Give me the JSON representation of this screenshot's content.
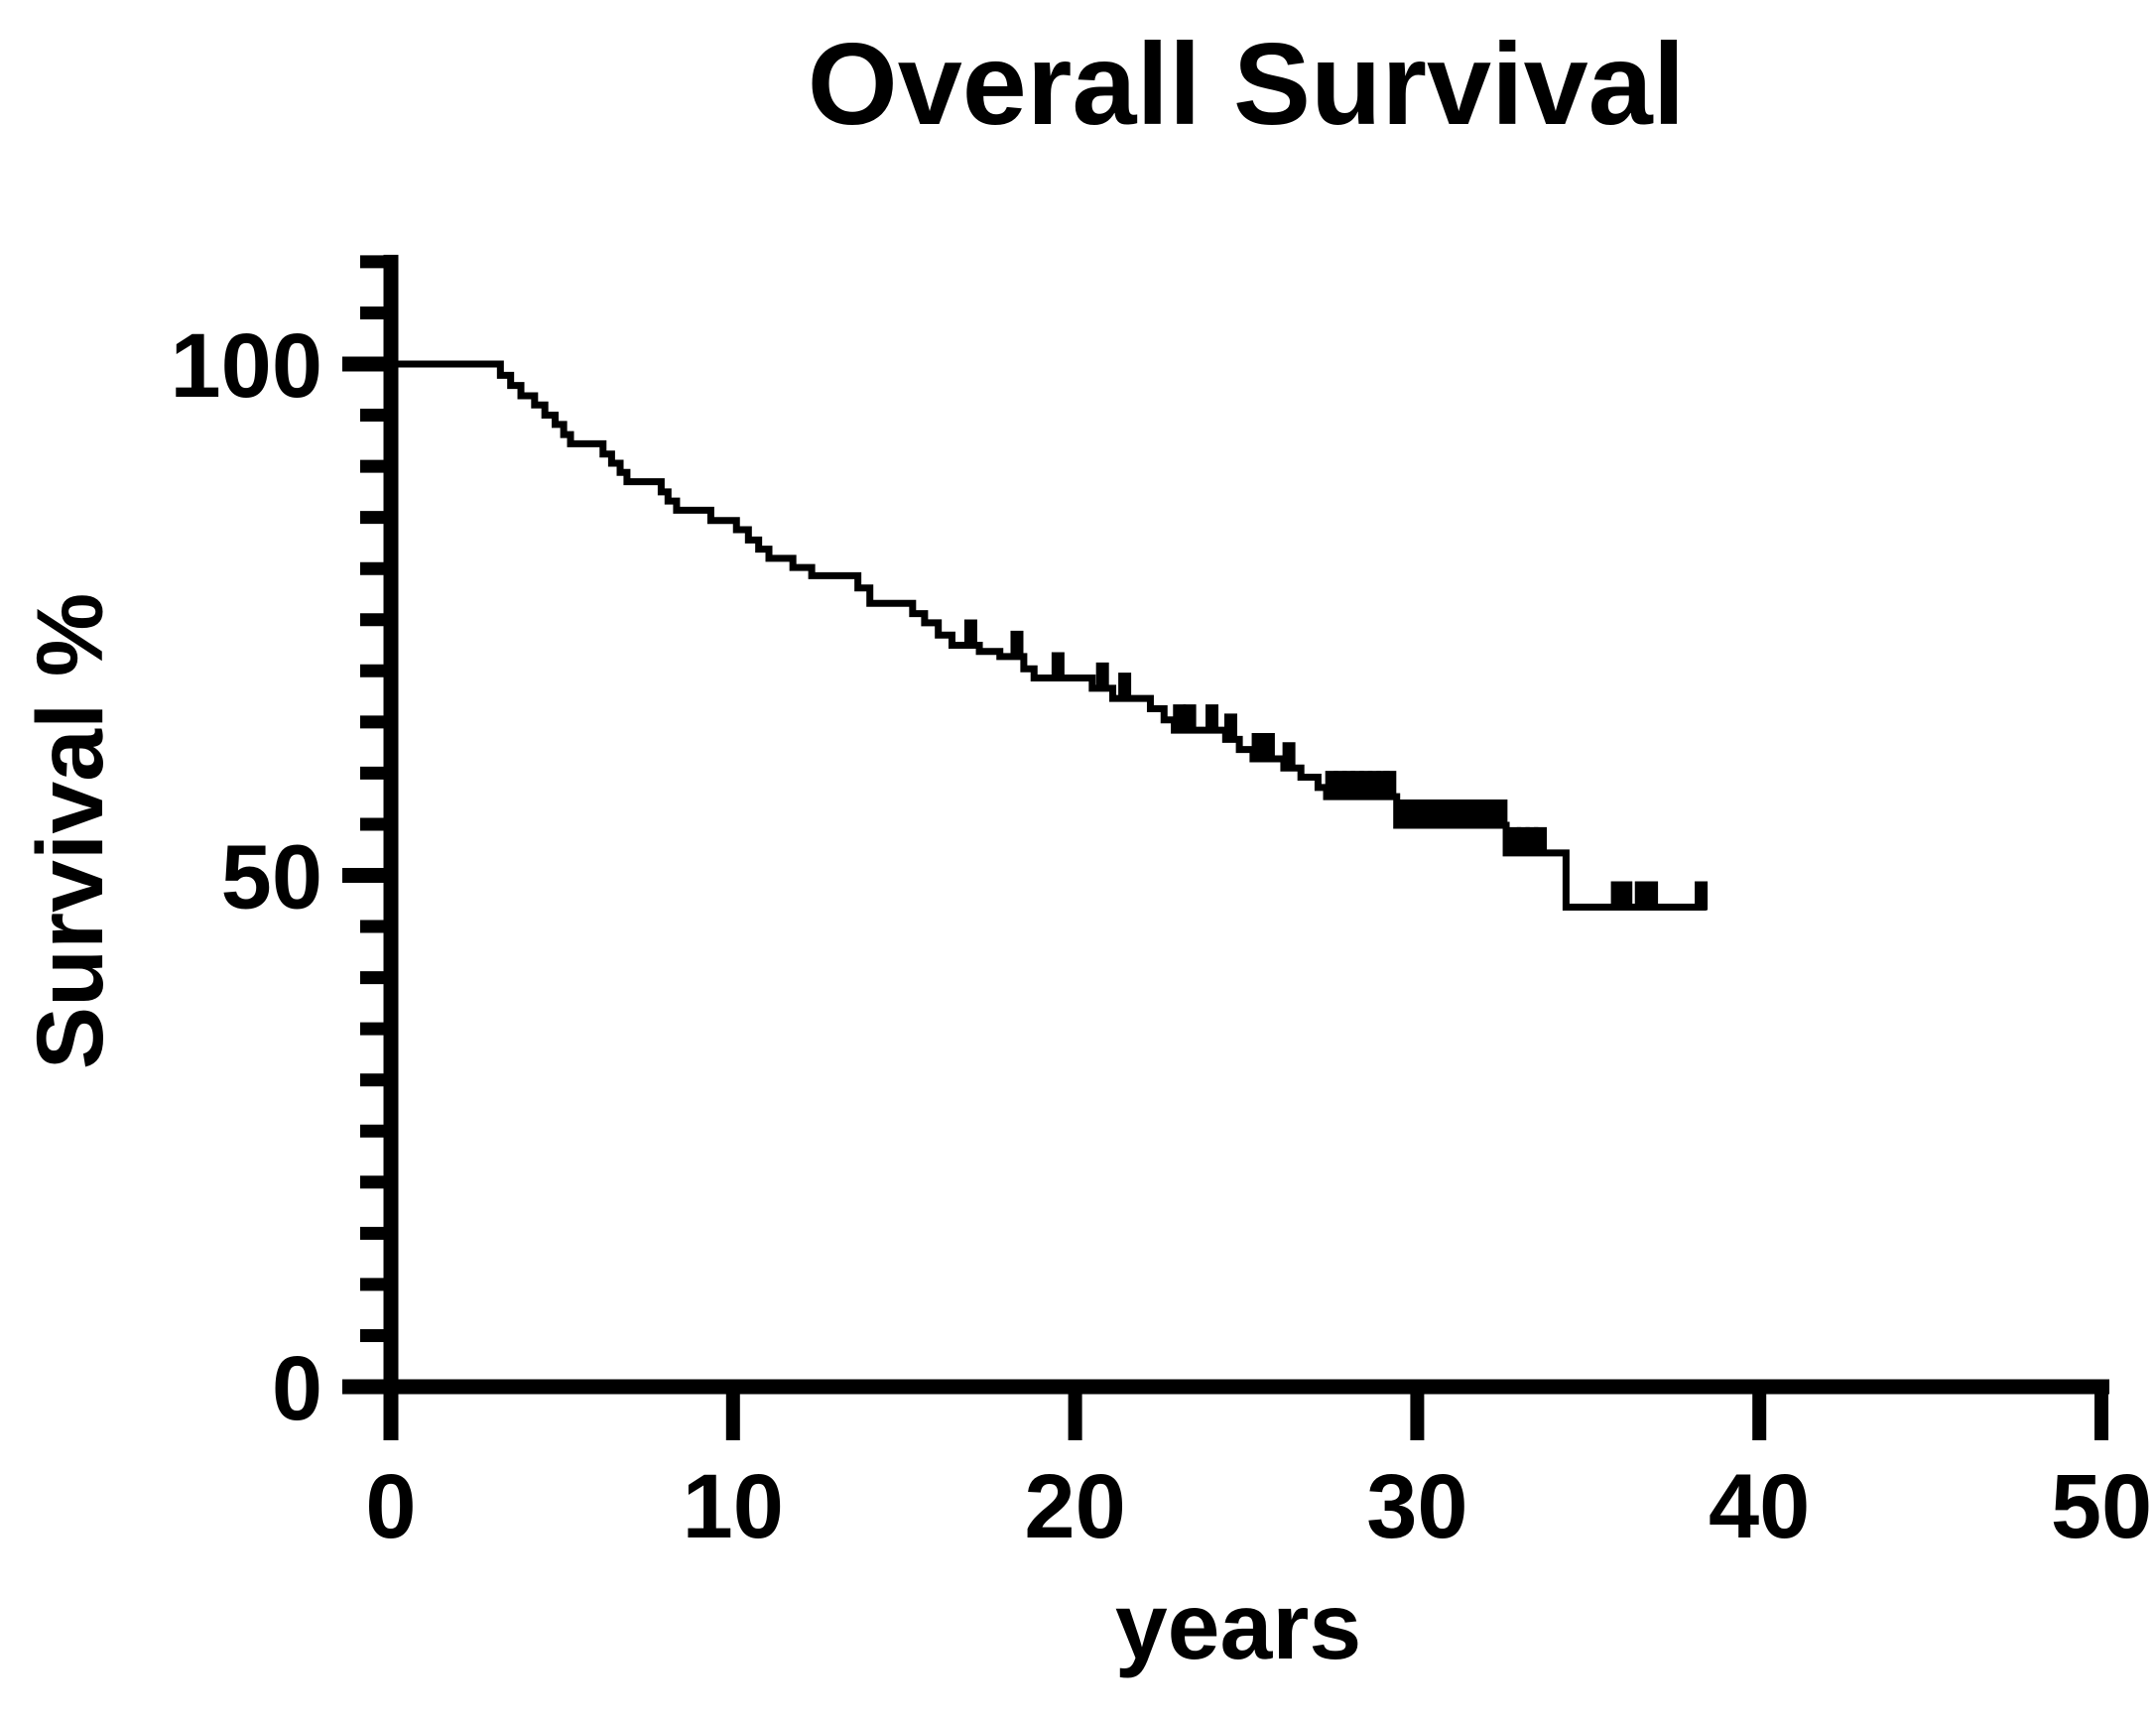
{
  "figure": {
    "title": "Overall Survival",
    "x_axis_label": "years",
    "y_axis_label": "Survival %"
  },
  "colors": {
    "foreground": "#000000",
    "background": "#ffffff"
  },
  "axes": {
    "x_tick_labels": [
      "0",
      "10",
      "20",
      "30",
      "40",
      "50"
    ],
    "y_tick_labels": [
      "0",
      "50",
      "100"
    ]
  },
  "chart_data": {
    "type": "line",
    "subtype": "kaplan_meier_step",
    "title": "Overall Survival",
    "xlabel": "years",
    "ylabel": "Survival %",
    "xlim": [
      0,
      50
    ],
    "ylim": [
      0,
      110
    ],
    "x_ticks": [
      0,
      10,
      20,
      30,
      40,
      50
    ],
    "y_major_ticks": [
      0,
      50,
      100
    ],
    "y_minor_tick_step": 5,
    "grid": false,
    "legend": false,
    "series": [
      {
        "name": "Overall Survival",
        "color": "#000000",
        "end_time": 38.45,
        "steps": [
          [
            0,
            100
          ],
          [
            3.2,
            98.9
          ],
          [
            3.5,
            97.9
          ],
          [
            3.8,
            96.9
          ],
          [
            4.2,
            96.0
          ],
          [
            4.5,
            95.0
          ],
          [
            4.8,
            94.1
          ],
          [
            5.05,
            93.1
          ],
          [
            5.25,
            92.2
          ],
          [
            6.2,
            91.2
          ],
          [
            6.45,
            90.3
          ],
          [
            6.7,
            89.4
          ],
          [
            6.9,
            88.5
          ],
          [
            7.9,
            87.5
          ],
          [
            8.1,
            86.6
          ],
          [
            8.35,
            85.7
          ],
          [
            9.35,
            84.7
          ],
          [
            10.1,
            83.8
          ],
          [
            10.45,
            82.8
          ],
          [
            10.75,
            81.9
          ],
          [
            11.05,
            81.0
          ],
          [
            11.75,
            80.1
          ],
          [
            12.3,
            79.3
          ],
          [
            13.65,
            78.1
          ],
          [
            14.0,
            76.6
          ],
          [
            15.25,
            75.6
          ],
          [
            15.6,
            74.7
          ],
          [
            16.0,
            73.5
          ],
          [
            16.4,
            72.5
          ],
          [
            17.2,
            71.9
          ],
          [
            17.8,
            71.4
          ],
          [
            18.5,
            70.2
          ],
          [
            18.8,
            69.3
          ],
          [
            20.5,
            68.3
          ],
          [
            21.1,
            67.3
          ],
          [
            22.2,
            66.3
          ],
          [
            22.6,
            65.2
          ],
          [
            22.9,
            64.2
          ],
          [
            24.4,
            63.3
          ],
          [
            24.8,
            62.3
          ],
          [
            25.2,
            61.4
          ],
          [
            26.1,
            60.5
          ],
          [
            26.6,
            59.6
          ],
          [
            27.1,
            58.6
          ],
          [
            27.35,
            57.7
          ],
          [
            29.4,
            54.9
          ],
          [
            32.6,
            52.2
          ],
          [
            34.35,
            46.9
          ]
        ],
        "censor_marks": [
          [
            16.95,
            72.5
          ],
          [
            18.3,
            71.4
          ],
          [
            19.5,
            69.3
          ],
          [
            20.8,
            68.3
          ],
          [
            21.45,
            67.3
          ],
          [
            23.05,
            64.2
          ],
          [
            23.35,
            64.2
          ],
          [
            24.0,
            64.2
          ],
          [
            24.55,
            63.3
          ],
          [
            25.35,
            61.4
          ],
          [
            25.65,
            61.4
          ],
          [
            26.25,
            60.5
          ],
          [
            27.5,
            57.7
          ],
          [
            27.75,
            57.7
          ],
          [
            28.0,
            57.7
          ],
          [
            28.25,
            57.7
          ],
          [
            28.5,
            57.7
          ],
          [
            28.75,
            57.7
          ],
          [
            29.0,
            57.7
          ],
          [
            29.2,
            57.7
          ],
          [
            29.55,
            54.9
          ],
          [
            29.8,
            54.9
          ],
          [
            30.05,
            54.9
          ],
          [
            30.3,
            54.9
          ],
          [
            30.55,
            54.9
          ],
          [
            30.8,
            54.9
          ],
          [
            31.05,
            54.9
          ],
          [
            31.3,
            54.9
          ],
          [
            31.6,
            54.9
          ],
          [
            31.85,
            54.9
          ],
          [
            32.15,
            54.9
          ],
          [
            32.45,
            54.9
          ],
          [
            32.85,
            52.2
          ],
          [
            33.1,
            52.2
          ],
          [
            33.35,
            52.2
          ],
          [
            33.6,
            52.2
          ],
          [
            35.85,
            46.9
          ],
          [
            36.1,
            46.9
          ],
          [
            36.55,
            46.9
          ],
          [
            36.85,
            46.9
          ],
          [
            38.3,
            46.9
          ]
        ]
      }
    ]
  }
}
